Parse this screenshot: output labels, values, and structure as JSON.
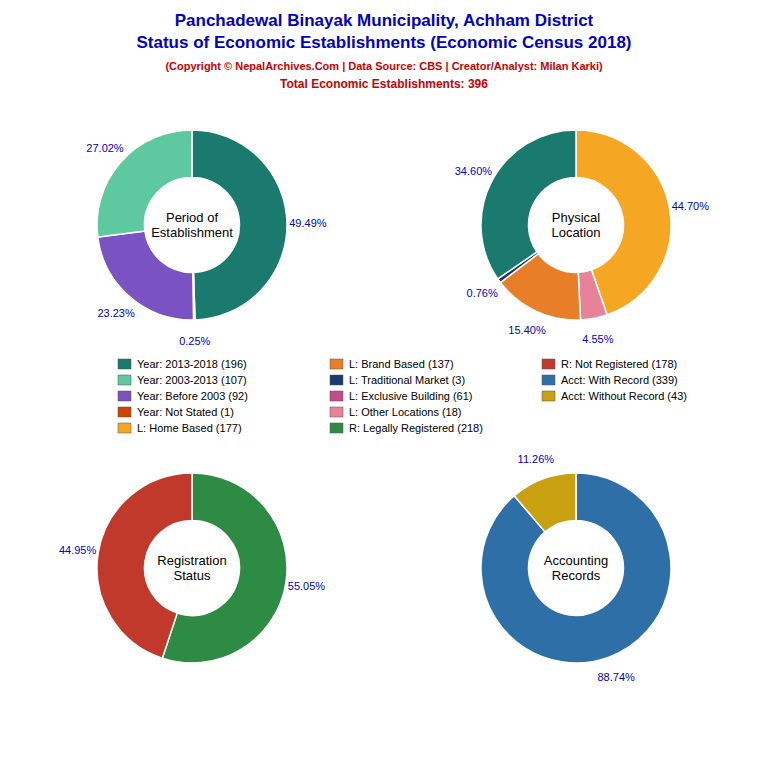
{
  "title": [
    "Panchadewal Binayak Municipality, Achham District",
    "Status of Economic Establishments (Economic Census 2018)"
  ],
  "subtitle": [
    "(Copyright © NepalArchives.Com | Data Source: CBS | Creator/Analyst: Milan Karki)",
    "Total Economic Establishments: 396"
  ],
  "chart_data": [
    {
      "type": "pie",
      "title": "Period of\nEstablishment",
      "values": [
        49.49,
        0.25,
        23.23,
        27.02
      ],
      "value_labels": [
        "49.49%",
        "0.25%",
        "23.23%",
        "27.02%"
      ],
      "colors": [
        "#1a7a6e",
        "#cc4400",
        "#7b52c1",
        "#5ec8a0"
      ],
      "data_labels": true
    },
    {
      "type": "pie",
      "title": "Physical\nLocation",
      "values": [
        44.7,
        4.55,
        15.4,
        0.76,
        34.6
      ],
      "value_labels": [
        "44.70%",
        "4.55%",
        "15.40%",
        "0.76%",
        "34.60%"
      ],
      "colors": [
        "#f5a623",
        "#e8829a",
        "#e87e27",
        "#1a3a6e",
        "#1a7a6e"
      ],
      "data_labels": true
    },
    {
      "type": "pie",
      "title": "Registration\nStatus",
      "values": [
        55.05,
        44.95
      ],
      "value_labels": [
        "55.05%",
        "44.95%"
      ],
      "colors": [
        "#2e8b44",
        "#c0392b"
      ],
      "data_labels": true
    },
    {
      "type": "pie",
      "title": "Accounting\nRecords",
      "values": [
        88.74,
        11.26
      ],
      "value_labels": [
        "88.74%",
        "11.26%"
      ],
      "colors": [
        "#2e6fa8",
        "#c8a010"
      ],
      "data_labels": true
    },
    {
      "type": "legend",
      "series": [
        {
          "name": "Year: 2013-2018 (196)",
          "color": "#1a7a6e"
        },
        {
          "name": "Year: 2003-2013 (107)",
          "color": "#5ec8a0"
        },
        {
          "name": "Year: Before 2003 (92)",
          "color": "#7b52c1"
        },
        {
          "name": "Year: Not Stated (1)",
          "color": "#cc4400"
        },
        {
          "name": "L: Home Based (177)",
          "color": "#f5a623"
        },
        {
          "name": "L: Brand Based (137)",
          "color": "#e87e27"
        },
        {
          "name": "L: Traditional Market (3)",
          "color": "#1a3a6e"
        },
        {
          "name": "L: Exclusive Building (61)",
          "color": "#c44b8a"
        },
        {
          "name": "L: Other Locations (18)",
          "color": "#e8829a"
        },
        {
          "name": "R: Legally Registered (218)",
          "color": "#2e8b44"
        },
        {
          "name": "R: Not Registered (178)",
          "color": "#c0392b"
        },
        {
          "name": "Acct: With Record (339)",
          "color": "#2e6fa8"
        },
        {
          "name": "Acct: Without Record (43)",
          "color": "#c8a010"
        }
      ]
    }
  ]
}
